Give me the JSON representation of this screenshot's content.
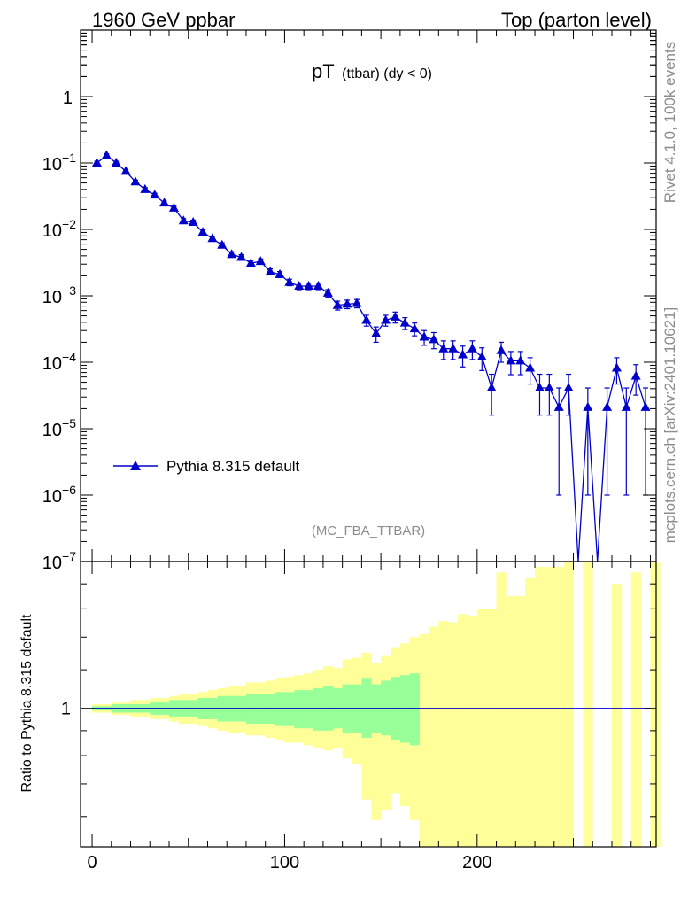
{
  "header": {
    "left": "1960 GeV ppbar",
    "right": "Top (parton level)"
  },
  "side_labels": {
    "version": "Rivet 4.1.0,  100k events",
    "site": "mcplots.cern.ch [arXiv:2401.10621]"
  },
  "chart_data": [
    {
      "type": "line",
      "title_main": "pT",
      "title_sub": "(ttbar) (dy < 0)",
      "annotation": "(MC_FBA_TTBAR)",
      "yscale": "log",
      "ylim": [
        1e-07,
        10
      ],
      "xlim": [
        -6,
        293
      ],
      "y_ticks": [
        {
          "v": 1,
          "label": "1"
        },
        {
          "v": 0.1,
          "label": "10",
          "exp": "−1"
        },
        {
          "v": 0.01,
          "label": "10",
          "exp": "−2"
        },
        {
          "v": 0.001,
          "label": "10",
          "exp": "−3"
        },
        {
          "v": 0.0001,
          "label": "10",
          "exp": "−4"
        },
        {
          "v": 1e-05,
          "label": "10",
          "exp": "−5"
        },
        {
          "v": 1e-06,
          "label": "10",
          "exp": "−6"
        },
        {
          "v": 1e-07,
          "label": "10",
          "exp": "−7"
        }
      ],
      "legend": [
        {
          "label": "Pythia 8.315 default",
          "color": "#0000cc",
          "marker": "triangle"
        }
      ],
      "series": [
        {
          "name": "Pythia 8.315 default",
          "color": "#0000cc",
          "x": [
            2.5,
            7.5,
            12.5,
            17.5,
            22.5,
            27.5,
            32.5,
            37.5,
            42.5,
            47.5,
            52.5,
            57.5,
            62.5,
            67.5,
            72.5,
            77.5,
            82.5,
            87.5,
            92.5,
            97.5,
            102.5,
            107.5,
            112.5,
            117.5,
            122.5,
            127.5,
            132.5,
            137.5,
            142.5,
            147.5,
            152.5,
            157.5,
            162.5,
            167.5,
            172.5,
            177.5,
            182.5,
            187.5,
            192.5,
            197.5,
            202.5,
            207.5,
            212.5,
            217.5,
            222.5,
            227.5,
            232.5,
            237.5,
            242.5,
            247.5,
            252.5,
            257.5,
            262.5,
            267.5,
            272.5,
            277.5,
            282.5,
            287.5
          ],
          "y": [
            0.1,
            0.13,
            0.1,
            0.075,
            0.052,
            0.04,
            0.033,
            0.025,
            0.021,
            0.0135,
            0.0128,
            0.0091,
            0.0073,
            0.0058,
            0.0042,
            0.0038,
            0.0031,
            0.0033,
            0.0023,
            0.0021,
            0.0016,
            0.0014,
            0.0014,
            0.0014,
            0.0011,
            0.00072,
            0.00075,
            0.00077,
            0.00043,
            0.00027,
            0.00043,
            0.00048,
            0.00039,
            0.00032,
            0.00024,
            0.00022,
            0.00016,
            0.00016,
            0.00013,
            0.00016,
            0.00012,
            4.1e-05,
            0.00015,
            0.000105,
            0.000105,
            8.2e-05,
            4.1e-05,
            4.1e-05,
            2.1e-05,
            4.1e-05,
            2e-08,
            2.1e-05,
            2e-08,
            2.1e-05,
            8.2e-05,
            2.1e-05,
            6.2e-05,
            2.1e-05
          ],
          "err": [
            0.006,
            0.007,
            0.006,
            0.004,
            0.003,
            0.0025,
            0.002,
            0.0016,
            0.0014,
            0.001,
            0.001,
            0.0007,
            0.0006,
            0.0005,
            0.0004,
            0.00035,
            0.0003,
            0.0003,
            0.00024,
            0.00022,
            0.00018,
            0.00016,
            0.00016,
            0.00016,
            0.00014,
            0.00011,
            0.00011,
            0.00011,
            8e-05,
            7e-05,
            8e-05,
            9e-05,
            8e-05,
            7e-05,
            6e-05,
            6e-05,
            5e-05,
            5e-05,
            4.5e-05,
            5e-05,
            4.5e-05,
            2.5e-05,
            5e-05,
            4e-05,
            4e-05,
            3.5e-05,
            2.5e-05,
            2.5e-05,
            2e-05,
            2.5e-05,
            0,
            2e-05,
            0,
            2e-05,
            3.5e-05,
            2e-05,
            3e-05,
            2e-05
          ]
        }
      ]
    },
    {
      "type": "area",
      "ylabel": "Ratio to Pythia 8.315 default",
      "xlabel": "",
      "xlim": [
        -6,
        293
      ],
      "ylim": [
        0.52,
        2.0
      ],
      "yscale": "log",
      "y_ticks": [
        {
          "v": 1,
          "label": "1"
        }
      ],
      "x_ticks": [
        {
          "v": 0,
          "label": "0"
        },
        {
          "v": 100,
          "label": "100"
        },
        {
          "v": 200,
          "label": "200"
        }
      ],
      "bands": [
        {
          "name": "stat uncertainty",
          "color": "#99ff99"
        },
        {
          "name": "total uncertainty",
          "color": "#ffff99"
        }
      ],
      "bins_low": [
        0,
        5,
        10,
        15,
        20,
        25,
        30,
        35,
        40,
        45,
        50,
        55,
        60,
        65,
        70,
        75,
        80,
        85,
        90,
        95,
        100,
        105,
        110,
        115,
        120,
        125,
        130,
        135,
        140,
        145,
        150,
        155,
        160,
        165,
        170,
        175,
        180,
        185,
        190,
        195,
        200,
        205,
        210,
        215,
        220,
        225,
        230,
        235,
        240,
        245,
        250,
        255,
        260,
        265,
        270,
        275,
        280,
        285,
        290
      ],
      "yellow_hi": [
        1.02,
        1.02,
        1.03,
        1.03,
        1.04,
        1.04,
        1.05,
        1.05,
        1.06,
        1.07,
        1.07,
        1.08,
        1.09,
        1.1,
        1.11,
        1.11,
        1.13,
        1.13,
        1.14,
        1.15,
        1.16,
        1.17,
        1.18,
        1.2,
        1.22,
        1.21,
        1.26,
        1.27,
        1.3,
        1.24,
        1.28,
        1.33,
        1.36,
        1.4,
        1.42,
        1.47,
        1.51,
        1.5,
        1.56,
        1.55,
        1.6,
        1.6,
        1.9,
        1.7,
        1.7,
        1.85,
        1.95,
        1.95,
        1.95,
        2.0,
        0,
        2.0,
        0,
        0,
        1.8,
        0,
        1.9,
        0,
        2.0
      ],
      "yellow_lo": [
        0.98,
        0.98,
        0.97,
        0.97,
        0.96,
        0.96,
        0.95,
        0.95,
        0.94,
        0.93,
        0.93,
        0.92,
        0.91,
        0.9,
        0.89,
        0.89,
        0.88,
        0.88,
        0.87,
        0.86,
        0.85,
        0.85,
        0.84,
        0.83,
        0.82,
        0.83,
        0.79,
        0.77,
        0.65,
        0.59,
        0.62,
        0.67,
        0.63,
        0.59,
        0.52,
        0.52,
        0.52,
        0.52,
        0.52,
        0.52,
        0.52,
        0.52,
        0.52,
        0.52,
        0.52,
        0.52,
        0.52,
        0.52,
        0.52,
        0.52,
        0,
        0.52,
        0,
        0,
        0.52,
        0,
        0.52,
        0,
        0.52
      ],
      "green_hi": [
        1.01,
        1.01,
        1.02,
        1.02,
        1.02,
        1.02,
        1.03,
        1.03,
        1.04,
        1.04,
        1.04,
        1.05,
        1.05,
        1.06,
        1.06,
        1.06,
        1.07,
        1.07,
        1.07,
        1.08,
        1.08,
        1.09,
        1.09,
        1.1,
        1.11,
        1.1,
        1.12,
        1.12,
        1.15,
        1.12,
        1.14,
        1.16,
        1.17,
        1.18
      ],
      "green_lo": [
        0.99,
        0.99,
        0.98,
        0.98,
        0.98,
        0.98,
        0.97,
        0.97,
        0.96,
        0.96,
        0.96,
        0.95,
        0.95,
        0.94,
        0.94,
        0.94,
        0.93,
        0.93,
        0.93,
        0.92,
        0.92,
        0.91,
        0.91,
        0.9,
        0.9,
        0.91,
        0.89,
        0.89,
        0.87,
        0.89,
        0.88,
        0.86,
        0.85,
        0.84
      ]
    }
  ]
}
